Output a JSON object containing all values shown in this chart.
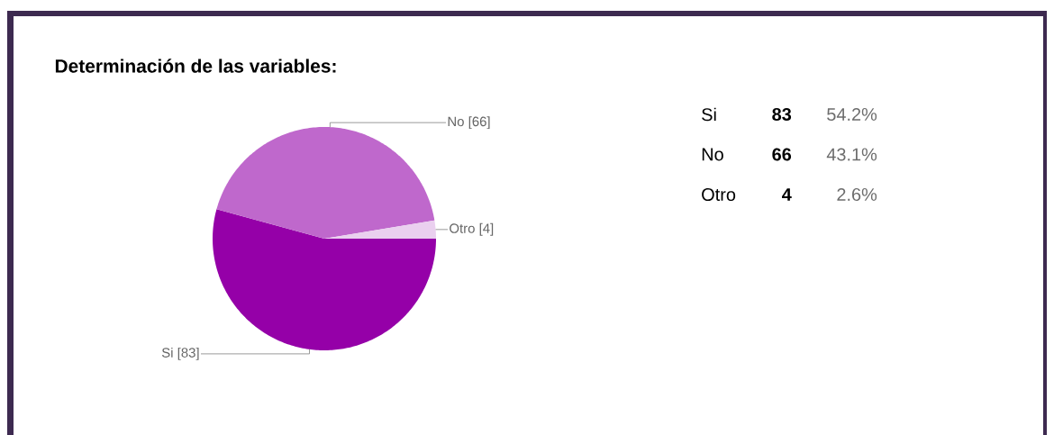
{
  "chart_data": {
    "type": "pie",
    "title": "Determinación de las variables:",
    "categories": [
      "Si",
      "No",
      "Otro"
    ],
    "values": [
      83,
      66,
      4
    ],
    "colors": [
      "#9500a8",
      "#bf68cc",
      "#ead0ef"
    ],
    "data_labels": true,
    "value_labels": [
      "[83]",
      "[66]",
      "[4]"
    ],
    "annotations": [
      "83",
      "54.2%",
      "66",
      "43.1%",
      "4",
      "2.6%"
    ]
  }
}
